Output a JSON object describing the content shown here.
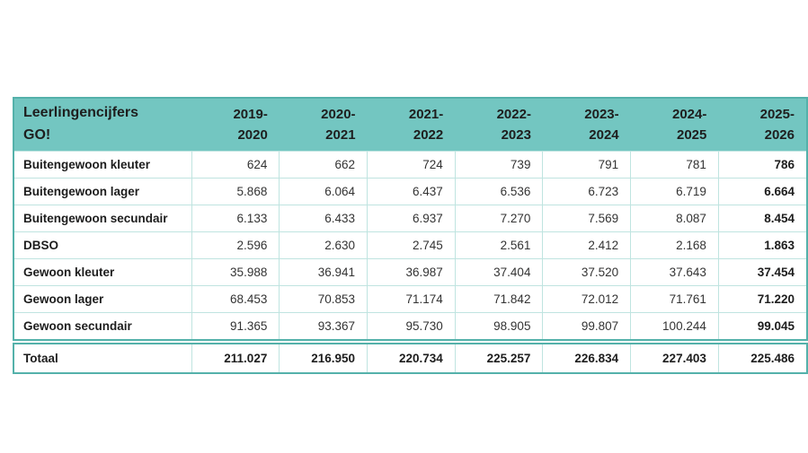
{
  "table": {
    "title_line1": "Leerlingencijfers",
    "title_line2": "GO!",
    "columns": [
      {
        "line1": "2019-",
        "line2": "2020"
      },
      {
        "line1": "2020-",
        "line2": "2021"
      },
      {
        "line1": "2021-",
        "line2": "2022"
      },
      {
        "line1": "2022-",
        "line2": "2023"
      },
      {
        "line1": "2023-",
        "line2": "2024"
      },
      {
        "line1": "2024-",
        "line2": "2025"
      },
      {
        "line1": "2025-",
        "line2": "2026"
      }
    ],
    "rows": [
      {
        "label": "Buitengewoon kleuter",
        "values": [
          "624",
          "662",
          "724",
          "739",
          "791",
          "781",
          "786"
        ]
      },
      {
        "label": "Buitengewoon lager",
        "values": [
          "5.868",
          "6.064",
          "6.437",
          "6.536",
          "6.723",
          "6.719",
          "6.664"
        ]
      },
      {
        "label": "Buitengewoon secundair",
        "values": [
          "6.133",
          "6.433",
          "6.937",
          "7.270",
          "7.569",
          "8.087",
          "8.454"
        ]
      },
      {
        "label": "DBSO",
        "values": [
          "2.596",
          "2.630",
          "2.745",
          "2.561",
          "2.412",
          "2.168",
          "1.863"
        ]
      },
      {
        "label": "Gewoon kleuter",
        "values": [
          "35.988",
          "36.941",
          "36.987",
          "37.404",
          "37.520",
          "37.643",
          "37.454"
        ]
      },
      {
        "label": "Gewoon lager",
        "values": [
          "68.453",
          "70.853",
          "71.174",
          "71.842",
          "72.012",
          "71.761",
          "71.220"
        ]
      },
      {
        "label": "Gewoon secundair",
        "values": [
          "91.365",
          "93.367",
          "95.730",
          "98.905",
          "99.807",
          "100.244",
          "99.045"
        ]
      }
    ],
    "total": {
      "label": "Totaal",
      "values": [
        "211.027",
        "216.950",
        "220.734",
        "225.257",
        "226.834",
        "227.403",
        "225.486"
      ]
    }
  },
  "colors": {
    "header_background": "#73c6c1",
    "outer_border": "#54b1aa",
    "grid_line": "#bfe4e0",
    "text_dark": "#1d1d1d",
    "text_number": "#333333",
    "page_background": "#ffffff"
  },
  "chart_data": {
    "type": "table",
    "title": "Leerlingencijfers GO!",
    "columns": [
      "2019-2020",
      "2020-2021",
      "2021-2022",
      "2022-2023",
      "2023-2024",
      "2024-2025",
      "2025-2026"
    ],
    "rows": [
      {
        "label": "Buitengewoon kleuter",
        "values": [
          624,
          662,
          724,
          739,
          791,
          781,
          786
        ]
      },
      {
        "label": "Buitengewoon lager",
        "values": [
          5868,
          6064,
          6437,
          6536,
          6723,
          6719,
          6664
        ]
      },
      {
        "label": "Buitengewoon secundair",
        "values": [
          6133,
          6433,
          6937,
          7270,
          7569,
          8087,
          8454
        ]
      },
      {
        "label": "DBSO",
        "values": [
          2596,
          2630,
          2745,
          2561,
          2412,
          2168,
          1863
        ]
      },
      {
        "label": "Gewoon kleuter",
        "values": [
          35988,
          36941,
          36987,
          37404,
          37520,
          37643,
          37454
        ]
      },
      {
        "label": "Gewoon lager",
        "values": [
          68453,
          70853,
          71174,
          71842,
          72012,
          71761,
          71220
        ]
      },
      {
        "label": "Gewoon secundair",
        "values": [
          91365,
          93367,
          95730,
          98905,
          99807,
          100244,
          99045
        ]
      },
      {
        "label": "Totaal",
        "values": [
          211027,
          216950,
          220734,
          225257,
          226834,
          227403,
          225486
        ]
      }
    ],
    "notes": "Last column (2025-2026) and Totaal row rendered bold; thousands separated by dots"
  }
}
